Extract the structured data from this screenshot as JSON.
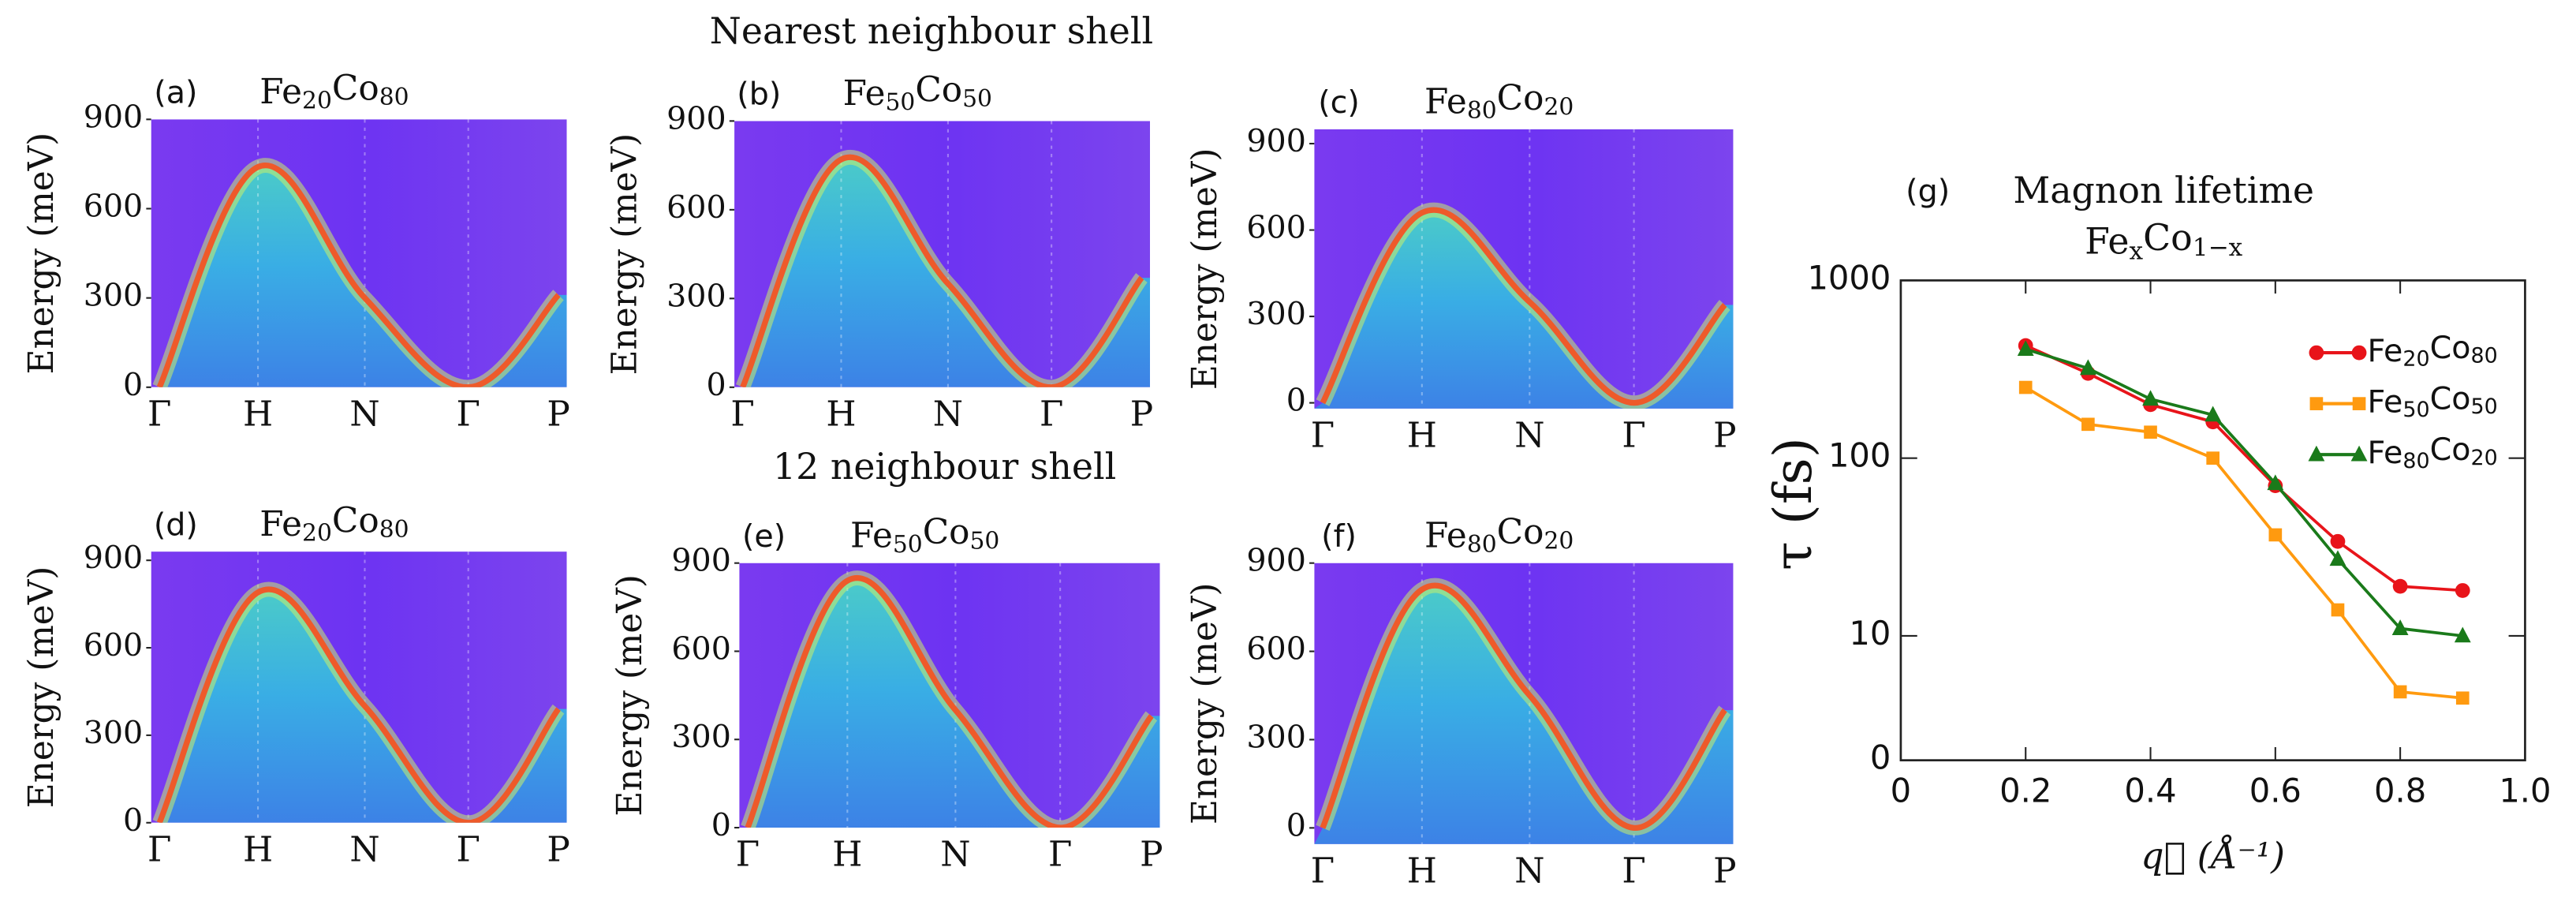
{
  "section_titles": [
    "Nearest neighbour shell",
    "12 neighbour shell"
  ],
  "chart_data": [
    {
      "type": "spectral",
      "panel_label": "(a)",
      "title": "Fe20Co80",
      "ylabel": "Energy (meV)",
      "categories": [
        "Γ",
        "H",
        "N",
        "Γ",
        "P"
      ],
      "values": [
        0,
        740,
        300,
        0,
        310
      ],
      "ylim": [
        0,
        900
      ],
      "yticks": [
        0,
        300,
        600,
        900
      ]
    },
    {
      "type": "spectral",
      "panel_label": "(b)",
      "title": "Fe50Co50",
      "ylabel": "Energy (meV)",
      "categories": [
        "Γ",
        "H",
        "N",
        "Γ",
        "P"
      ],
      "values": [
        0,
        770,
        350,
        0,
        370
      ],
      "ylim": [
        0,
        900
      ],
      "yticks": [
        0,
        300,
        600,
        900
      ]
    },
    {
      "type": "spectral",
      "panel_label": "(c)",
      "title": "Fe80Co20",
      "ylabel": "Energy (meV)",
      "categories": [
        "Γ",
        "H",
        "N",
        "Γ",
        "P"
      ],
      "values": [
        0,
        660,
        350,
        0,
        340
      ],
      "ylim": [
        -20,
        950
      ],
      "yticks": [
        0,
        300,
        600,
        900
      ]
    },
    {
      "type": "spectral",
      "panel_label": "(d)",
      "title": "Fe20Co80",
      "ylabel": "Energy (meV)",
      "categories": [
        "Γ",
        "H",
        "N",
        "Γ",
        "P"
      ],
      "values": [
        0,
        790,
        400,
        0,
        390
      ],
      "ylim": [
        0,
        930
      ],
      "yticks": [
        0,
        300,
        600,
        900
      ]
    },
    {
      "type": "spectral",
      "panel_label": "(e)",
      "title": "Fe50Co50",
      "ylabel": "Energy (meV)",
      "categories": [
        "Γ",
        "H",
        "N",
        "Γ",
        "P"
      ],
      "values": [
        0,
        840,
        400,
        0,
        380
      ],
      "ylim": [
        0,
        900
      ],
      "yticks": [
        0,
        300,
        600,
        900
      ]
    },
    {
      "type": "spectral",
      "panel_label": "(f)",
      "title": "Fe80Co20",
      "ylabel": "Energy (meV)",
      "categories": [
        "Γ",
        "H",
        "N",
        "Γ",
        "P"
      ],
      "values": [
        0,
        810,
        450,
        0,
        400
      ],
      "ylim": [
        -55,
        900
      ],
      "yticks": [
        0,
        300,
        600,
        900
      ]
    },
    {
      "type": "line",
      "panel_label": "(g)",
      "title": [
        "Magnon lifetime",
        "FexCo1−x"
      ],
      "xlabel": "q⃗ (Å⁻¹)",
      "ylabel": "τ (fs)",
      "x": [
        0.2,
        0.3,
        0.4,
        0.5,
        0.6,
        0.7,
        0.8,
        0.9
      ],
      "series": [
        {
          "name": "Fe20Co80",
          "color": "#e8141a",
          "marker": "circle",
          "values": [
            430,
            300,
            200,
            160,
            70,
            34,
            19,
            18
          ]
        },
        {
          "name": "Fe50Co50",
          "color": "#ff9a0f",
          "marker": "square",
          "values": [
            250,
            155,
            140,
            100,
            37,
            14,
            5.5,
            5
          ]
        },
        {
          "name": "Fe80Co20",
          "color": "#1a7a1a",
          "marker": "triangle",
          "values": [
            410,
            320,
            215,
            175,
            72,
            27,
            11,
            10
          ]
        }
      ],
      "xlim": [
        0,
        1
      ],
      "xticks": [
        0,
        0.2,
        0.4,
        0.6,
        0.8,
        {
          "value": 1,
          "label": "1.0"
        }
      ],
      "yscale": "symlog",
      "linthresh": 10,
      "ylim": [
        0,
        1000
      ],
      "yticks": [
        0,
        10,
        100,
        1000
      ],
      "legend": "upper right"
    }
  ]
}
